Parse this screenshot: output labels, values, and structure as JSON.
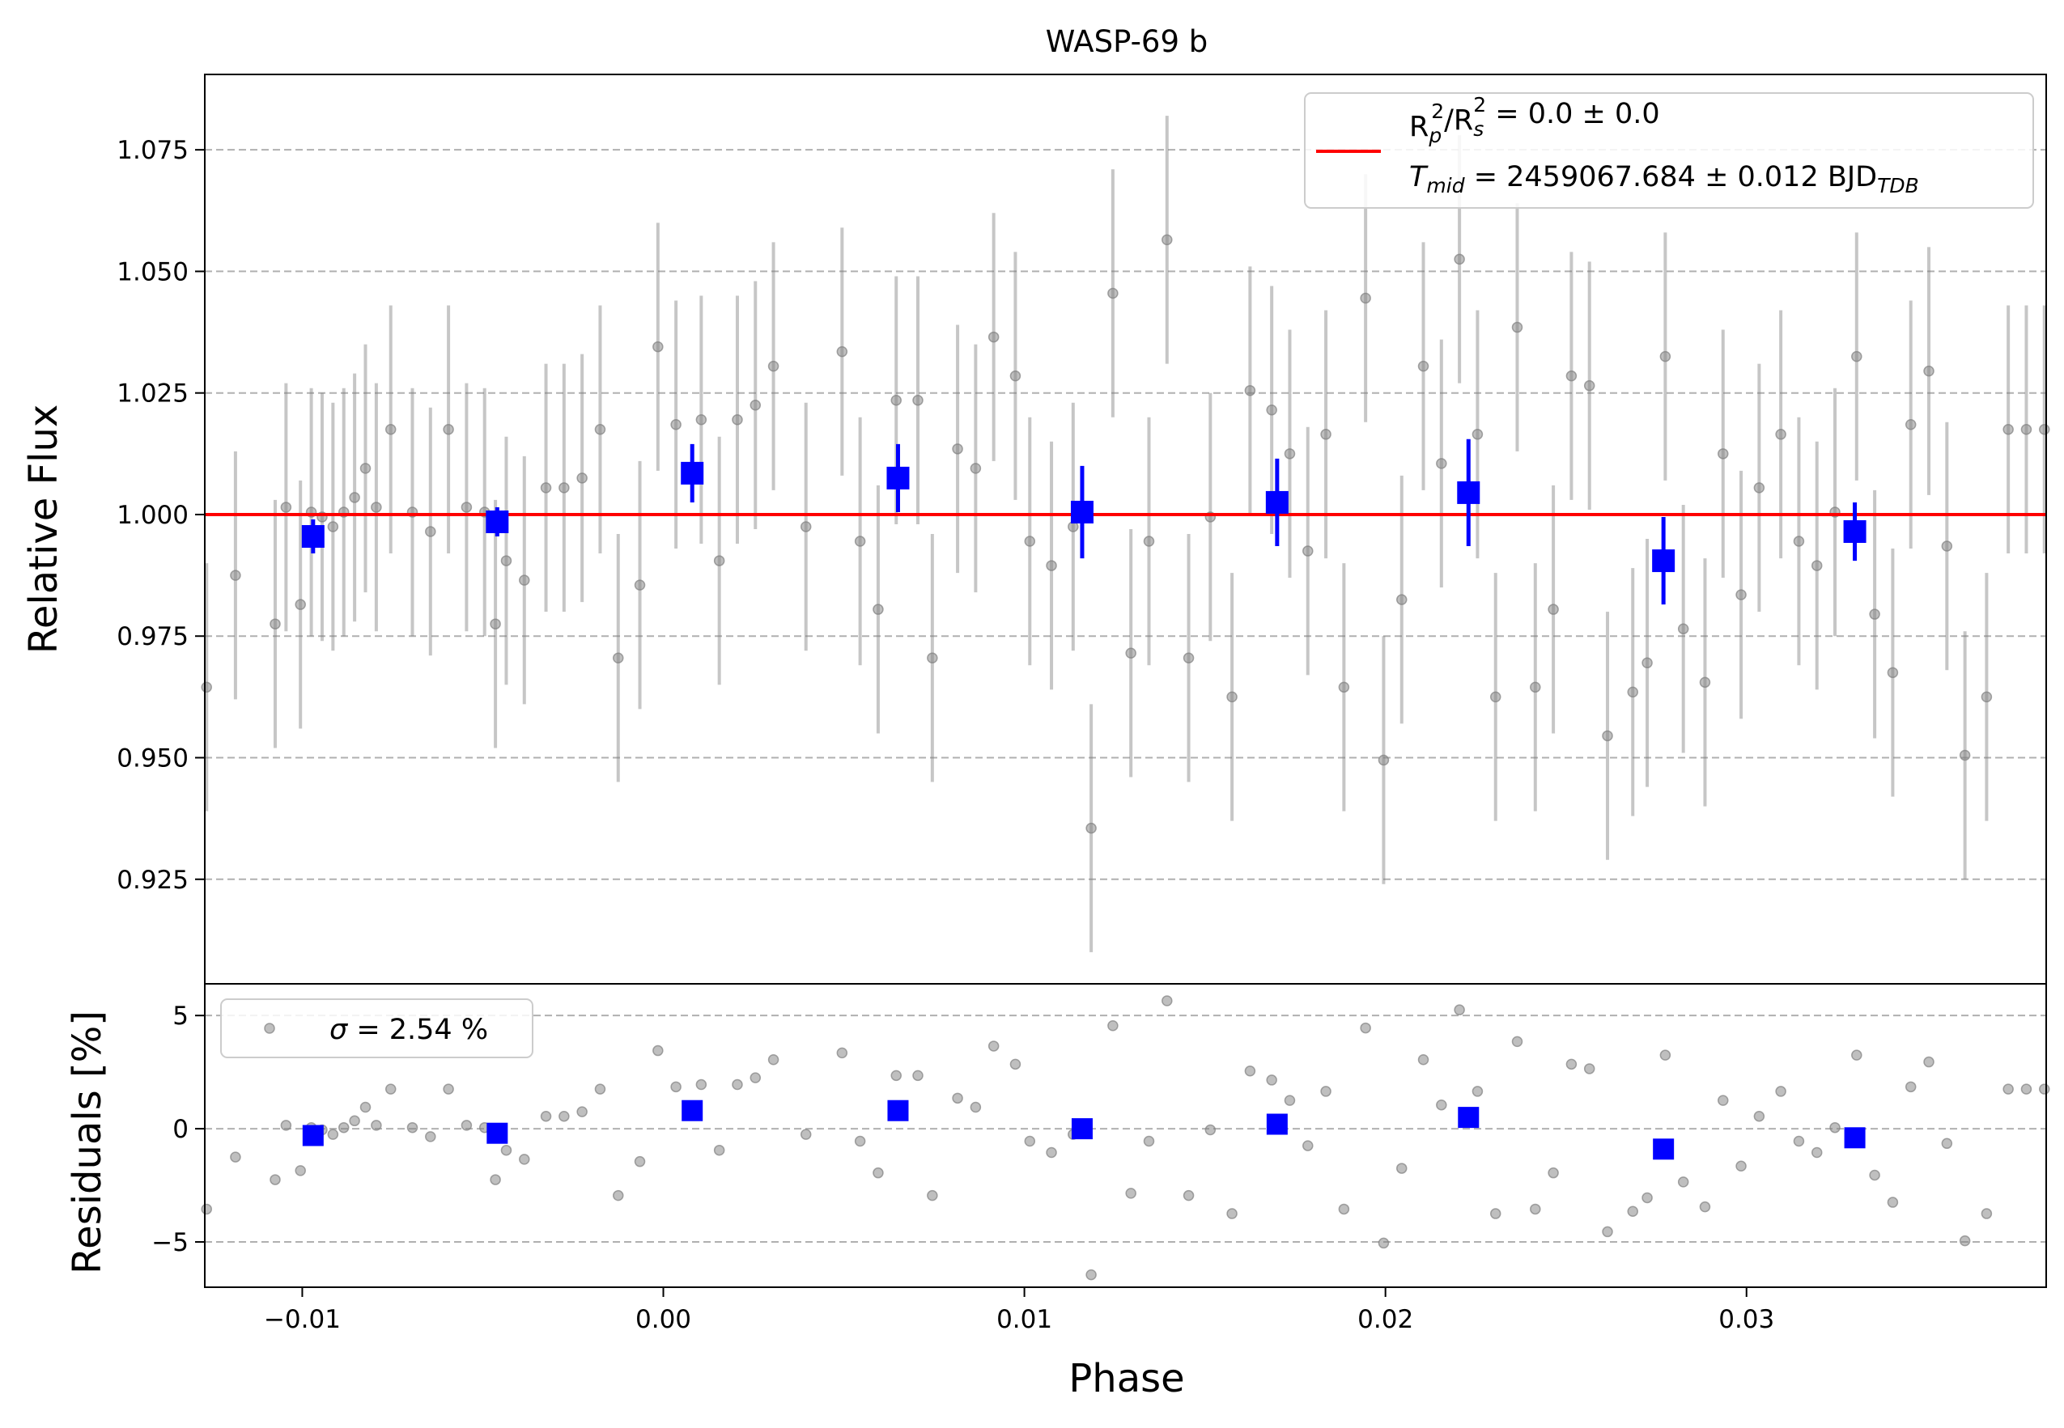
{
  "chart_data": [
    {
      "type": "scatter",
      "panel": "main",
      "title": "WASP-69 b",
      "xlabel": "Phase",
      "ylabel": "Relative Flux",
      "xlim": [
        -0.0127,
        0.0383
      ],
      "ylim": [
        0.9035,
        1.0905
      ],
      "x_ticks": [
        "−0.01",
        "0.00",
        "0.01",
        "0.02",
        "0.03"
      ],
      "x_tick_values": [
        -0.01,
        0.0,
        0.01,
        0.02,
        0.03
      ],
      "y_ticks": [
        "0.925",
        "0.950",
        "0.975",
        "1.000",
        "1.025",
        "1.050",
        "1.075"
      ],
      "y_tick_values": [
        0.925,
        0.95,
        0.975,
        1.0,
        1.025,
        1.05,
        1.075
      ],
      "grid": "horizontal dashed",
      "legend_location": "upper right",
      "legend": [
        {
          "label_parts": [
            [
              "R",
              ""
            ],
            [
              "p",
              "sub"
            ],
            [
              "2",
              "sup-over"
            ],
            [
              "/R",
              ""
            ],
            [
              "s",
              "sub"
            ],
            [
              "2",
              "sup-over"
            ],
            [
              " = 0.0 ± 0.0",
              ""
            ]
          ],
          "color": "#ff0000"
        },
        {
          "label_parts": [
            [
              "T",
              "italic"
            ],
            [
              "mid",
              "sub-italic"
            ],
            [
              " = 2459067.684 ± 0.012 BJD",
              ""
            ],
            [
              "TDB",
              "sub-italic"
            ]
          ],
          "color": "#ff0000"
        }
      ],
      "model": {
        "name": "model",
        "color": "#ff0000",
        "y": 1.0
      },
      "raw_series": {
        "color": "#808080",
        "error": 0.0255,
        "x": [
          -0.01265,
          -0.01185,
          -0.01075,
          -0.01045,
          -0.01005,
          -0.00975,
          -0.00945,
          -0.00915,
          -0.00885,
          -0.00855,
          -0.00825,
          -0.00795,
          -0.00755,
          -0.00695,
          -0.00645,
          -0.00595,
          -0.00545,
          -0.00495,
          -0.00465,
          -0.00435,
          -0.00385,
          -0.00325,
          -0.00275,
          -0.00225,
          -0.00175,
          -0.00125,
          -0.00065,
          -0.00015,
          0.00035,
          0.00105,
          0.00155,
          0.00205,
          0.00255,
          0.00305,
          0.00395,
          0.00495,
          0.00545,
          0.00595,
          0.00645,
          0.00705,
          0.00745,
          0.00815,
          0.00865,
          0.00915,
          0.00975,
          0.01015,
          0.01075,
          0.01135,
          0.01185,
          0.01245,
          0.01295,
          0.01345,
          0.01395,
          0.01455,
          0.01515,
          0.01575,
          0.01625,
          0.01685,
          0.01735,
          0.01785,
          0.01835,
          0.01885,
          0.01945,
          0.01995,
          0.02045,
          0.02105,
          0.02155,
          0.02205,
          0.02255,
          0.02305,
          0.02365,
          0.02415,
          0.02465,
          0.02515,
          0.02565,
          0.02615,
          0.02685,
          0.02725,
          0.02775,
          0.02825,
          0.02885,
          0.02935,
          0.02985,
          0.03035,
          0.03095,
          0.03145,
          0.03195,
          0.03245,
          0.03305,
          0.03355,
          0.03405,
          0.03455,
          0.03505,
          0.03555,
          0.03605,
          0.03665,
          0.03725,
          0.03775,
          0.03825
        ],
        "y": [
          0.9645,
          0.9875,
          0.9775,
          1.0015,
          0.9815,
          1.0005,
          0.9995,
          0.9975,
          1.0005,
          1.0035,
          1.0095,
          1.0015,
          1.0175,
          1.0005,
          0.9965,
          1.0175,
          1.0015,
          1.0005,
          0.9775,
          0.9905,
          0.9865,
          1.0055,
          1.0055,
          1.0075,
          1.0175,
          0.9705,
          0.9855,
          1.0345,
          1.0185,
          1.0195,
          0.9905,
          1.0195,
          1.0225,
          1.0305,
          0.9975,
          1.0335,
          0.9945,
          0.9805,
          1.0235,
          1.0235,
          0.9705,
          1.0135,
          1.0095,
          1.0365,
          1.0285,
          0.9945,
          0.9895,
          0.9975,
          0.9355,
          1.0455,
          0.9715,
          0.9945,
          1.0565,
          0.9705,
          0.9995,
          0.9625,
          1.0255,
          1.0215,
          1.0125,
          0.9925,
          1.0165,
          0.9645,
          1.0445,
          0.9495,
          0.9825,
          1.0305,
          1.0105,
          1.0525,
          1.0165,
          0.9625,
          1.0385,
          0.9645,
          0.9805,
          1.0285,
          1.0265,
          0.9545,
          0.9635,
          0.9695,
          1.0325,
          0.9765,
          0.9655,
          1.0125,
          0.9835,
          1.0055,
          1.0165,
          0.9945,
          0.9895,
          1.0005,
          1.0325,
          0.9795,
          0.9675,
          1.0185,
          1.0295,
          0.9935,
          0.9505,
          0.9625,
          1.0175,
          1.0175,
          1.0175
        ]
      },
      "binned_series": {
        "color": "#0000ff",
        "x": [
          -0.0097,
          -0.0046,
          0.0008,
          0.0065,
          0.0116,
          0.017,
          0.0223,
          0.0277,
          0.033
        ],
        "y": [
          0.9955,
          0.9985,
          1.0085,
          1.0075,
          1.0005,
          1.0025,
          1.0045,
          0.9905,
          0.9965
        ],
        "yerr": [
          0.0035,
          0.003,
          0.006,
          0.007,
          0.0095,
          0.009,
          0.011,
          0.009,
          0.006
        ]
      }
    },
    {
      "type": "scatter",
      "panel": "residuals",
      "xlabel": "Phase",
      "ylabel": "Residuals [%]",
      "xlim": [
        -0.0127,
        0.0383
      ],
      "ylim": [
        -7.0,
        6.4
      ],
      "y_ticks": [
        "−5",
        "0",
        "5"
      ],
      "y_tick_values": [
        -5,
        0,
        5
      ],
      "grid": "horizontal dashed",
      "legend_location": "upper left",
      "legend": [
        {
          "label_parts": [
            [
              "σ",
              "italic"
            ],
            [
              " = 2.54 %",
              ""
            ]
          ],
          "color": "#808080"
        }
      ],
      "binned_series": {
        "color": "#0000ff",
        "x": [
          -0.0097,
          -0.0046,
          0.0008,
          0.0065,
          0.0116,
          0.017,
          0.0223,
          0.0277,
          0.033
        ],
        "y": [
          -0.3,
          -0.2,
          0.8,
          0.8,
          0.0,
          0.2,
          0.5,
          -0.9,
          -0.4
        ]
      }
    }
  ]
}
